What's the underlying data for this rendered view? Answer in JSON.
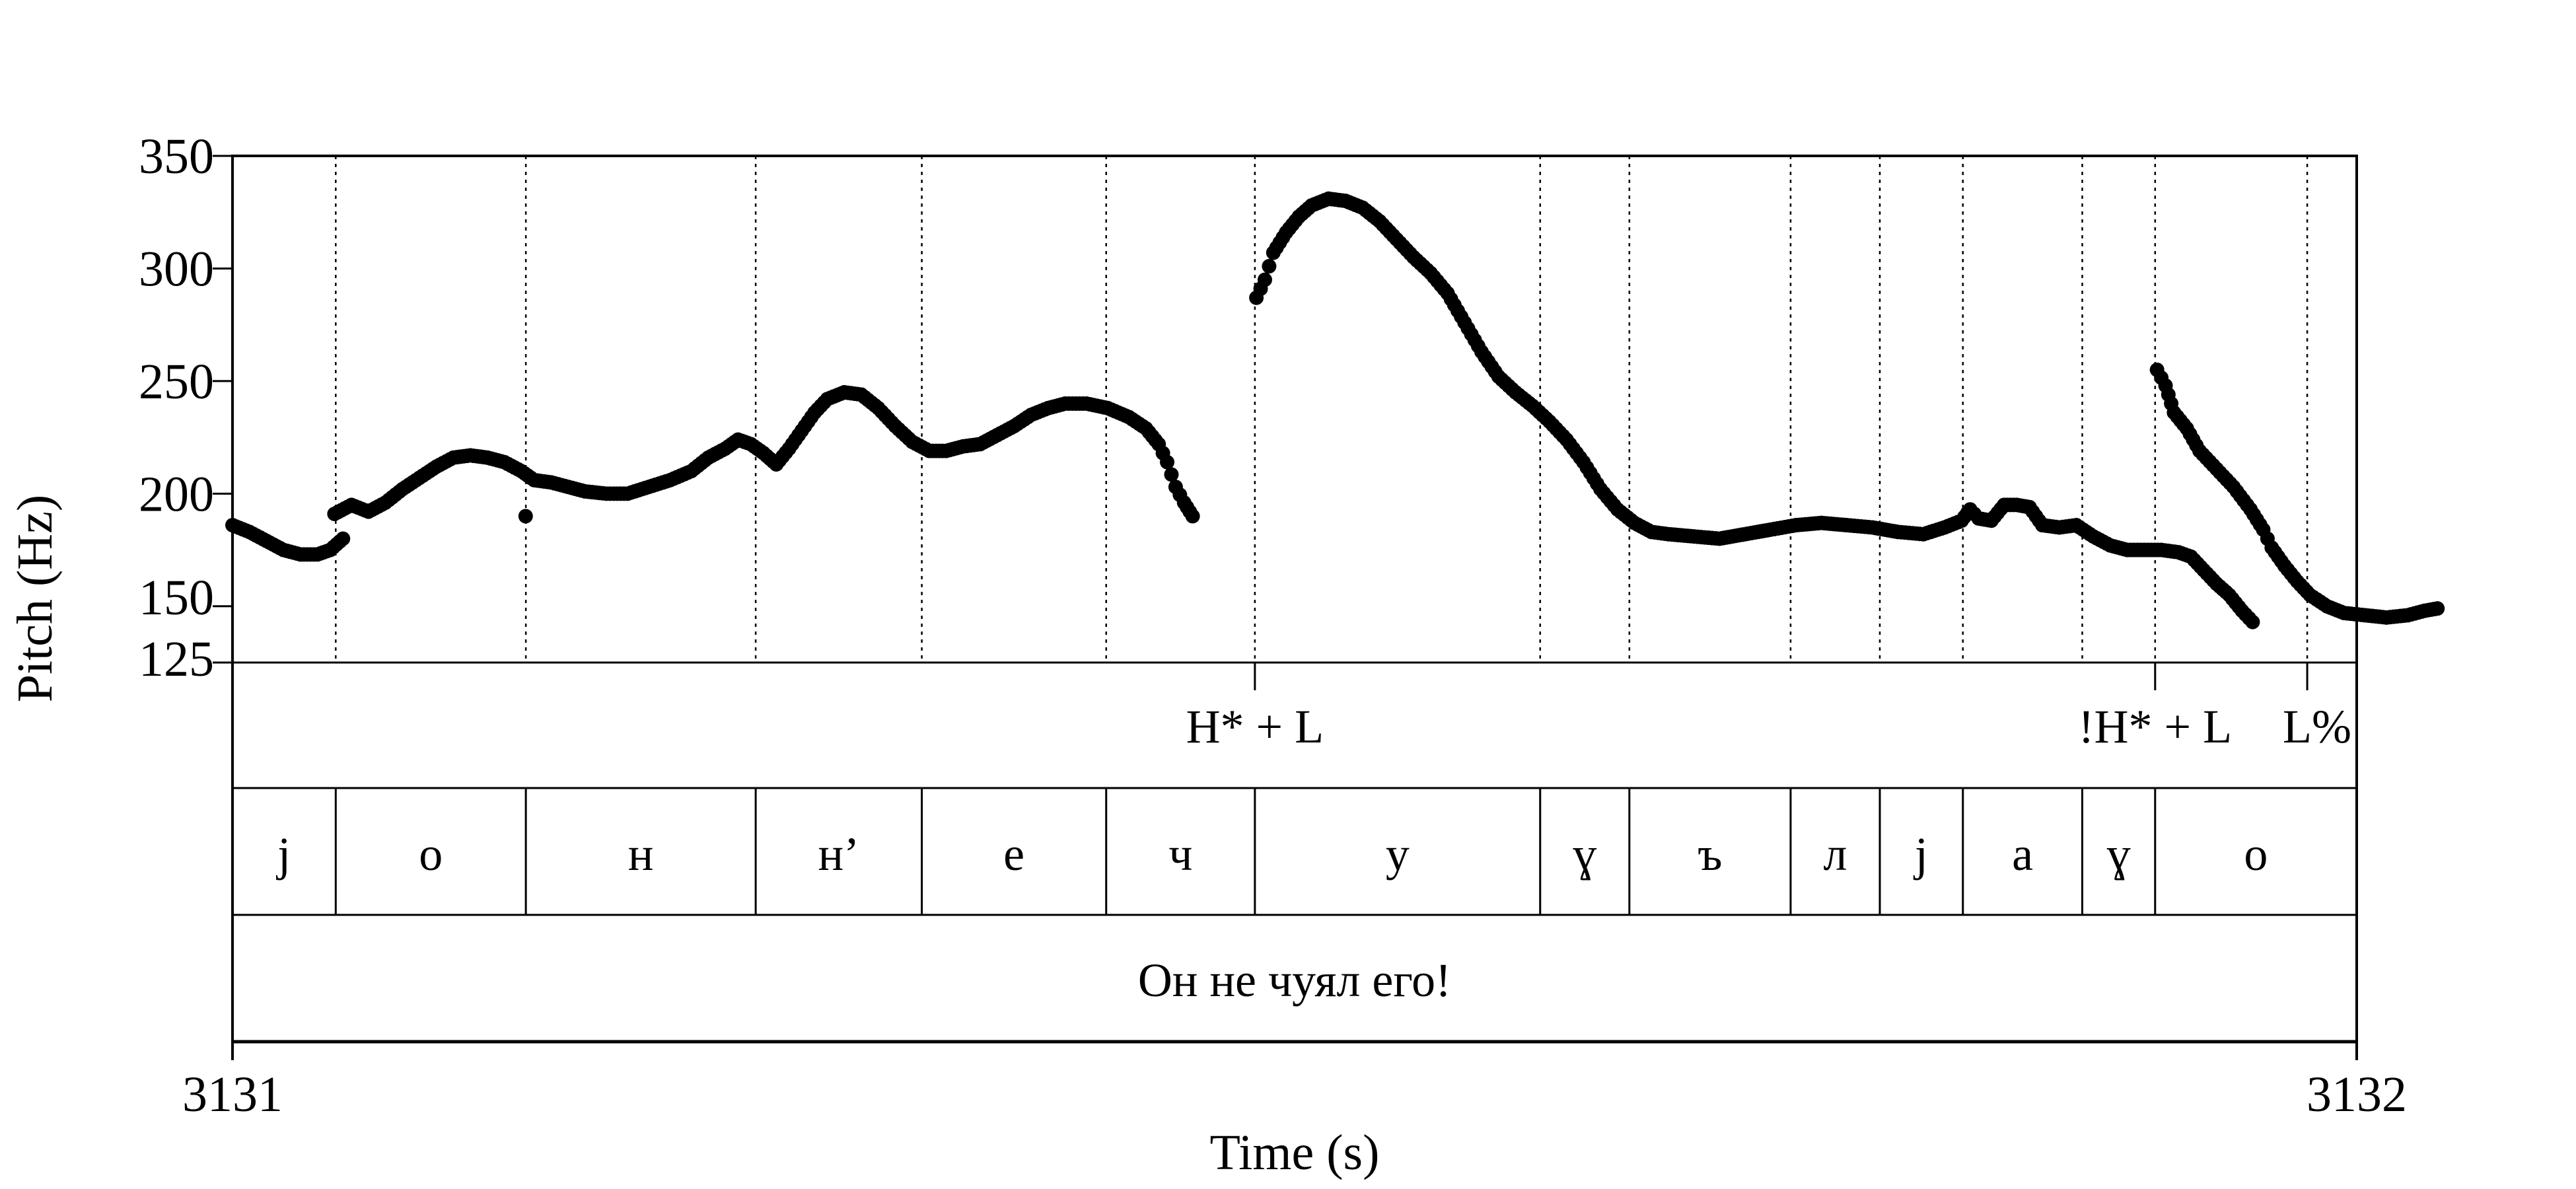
{
  "chart_data": {
    "type": "scatter",
    "title": "",
    "xlabel": "Time (s)",
    "ylabel": "Pitch (Hz)",
    "xlim": [
      3131,
      3132
    ],
    "ylim": [
      125,
      350
    ],
    "x_ticks": [
      "3131",
      "3132"
    ],
    "y_ticks": [
      {
        "value": 350,
        "label": "350"
      },
      {
        "value": 300,
        "label": "300"
      },
      {
        "value": 250,
        "label": "250"
      },
      {
        "value": 200,
        "label": "200"
      },
      {
        "value": 150,
        "label": "150"
      },
      {
        "value": 125,
        "label": "125"
      }
    ],
    "segment_boundaries": [
      3131.0486,
      3131.1381,
      3131.2463,
      3131.3245,
      3131.4113,
      3131.4813,
      3131.6156,
      3131.6576,
      3131.7335,
      3131.7755,
      3131.8146,
      3131.8708,
      3131.9051,
      3131.9767
    ],
    "pitch_curve": [
      [
        [
          3131.0,
          186
        ],
        [
          3131.008,
          183
        ],
        [
          3131.016,
          179
        ],
        [
          3131.024,
          175
        ],
        [
          3131.032,
          173
        ],
        [
          3131.04,
          173
        ],
        [
          3131.046,
          175
        ],
        [
          3131.052,
          180
        ]
      ],
      [
        [
          3131.048,
          191
        ],
        [
          3131.056,
          195
        ],
        [
          3131.064,
          192
        ],
        [
          3131.072,
          196
        ],
        [
          3131.08,
          202
        ],
        [
          3131.088,
          207
        ],
        [
          3131.096,
          212
        ],
        [
          3131.104,
          216
        ],
        [
          3131.112,
          217
        ],
        [
          3131.12,
          216
        ],
        [
          3131.128,
          214
        ],
        [
          3131.136,
          210
        ],
        [
          3131.142,
          206
        ],
        [
          3131.15,
          205
        ],
        [
          3131.158,
          203
        ],
        [
          3131.166,
          201
        ],
        [
          3131.176,
          200
        ],
        [
          3131.186,
          200
        ],
        [
          3131.196,
          203
        ],
        [
          3131.206,
          206
        ],
        [
          3131.216,
          210
        ],
        [
          3131.224,
          216
        ],
        [
          3131.232,
          220
        ],
        [
          3131.238,
          224
        ],
        [
          3131.244,
          222
        ],
        [
          3131.25,
          218
        ],
        [
          3131.256,
          213
        ],
        [
          3131.262,
          220
        ],
        [
          3131.268,
          228
        ],
        [
          3131.274,
          236
        ],
        [
          3131.28,
          242
        ],
        [
          3131.288,
          245
        ],
        [
          3131.296,
          244
        ],
        [
          3131.304,
          238
        ],
        [
          3131.312,
          230
        ],
        [
          3131.32,
          223
        ],
        [
          3131.328,
          219
        ],
        [
          3131.336,
          219
        ],
        [
          3131.344,
          221
        ],
        [
          3131.352,
          222
        ],
        [
          3131.36,
          226
        ],
        [
          3131.368,
          230
        ],
        [
          3131.376,
          235
        ],
        [
          3131.384,
          238
        ],
        [
          3131.392,
          240
        ],
        [
          3131.402,
          240
        ],
        [
          3131.412,
          238
        ],
        [
          3131.422,
          234
        ],
        [
          3131.43,
          229
        ],
        [
          3131.436,
          222
        ],
        [
          3131.44,
          214
        ],
        [
          3131.444,
          203
        ],
        [
          3131.448,
          196
        ],
        [
          3131.452,
          190
        ]
      ],
      [
        [
          3131.138,
          190
        ]
      ],
      [
        [
          3131.482,
          287
        ],
        [
          3131.486,
          295
        ],
        [
          3131.49,
          307
        ],
        [
          3131.496,
          316
        ],
        [
          3131.502,
          323
        ],
        [
          3131.508,
          328
        ],
        [
          3131.516,
          331
        ],
        [
          3131.524,
          330
        ],
        [
          3131.532,
          327
        ],
        [
          3131.54,
          321
        ],
        [
          3131.548,
          313
        ],
        [
          3131.556,
          305
        ],
        [
          3131.564,
          298
        ],
        [
          3131.572,
          289
        ],
        [
          3131.58,
          276
        ],
        [
          3131.588,
          263
        ],
        [
          3131.596,
          252
        ],
        [
          3131.604,
          245
        ],
        [
          3131.612,
          239
        ],
        [
          3131.62,
          232
        ],
        [
          3131.628,
          224
        ],
        [
          3131.636,
          214
        ],
        [
          3131.644,
          202
        ],
        [
          3131.652,
          193
        ],
        [
          3131.66,
          187
        ],
        [
          3131.668,
          183
        ],
        [
          3131.676,
          182
        ],
        [
          3131.688,
          181
        ],
        [
          3131.7,
          180
        ],
        [
          3131.712,
          182
        ],
        [
          3131.724,
          184
        ],
        [
          3131.736,
          186
        ],
        [
          3131.748,
          187
        ],
        [
          3131.76,
          186
        ],
        [
          3131.772,
          185
        ],
        [
          3131.784,
          183
        ],
        [
          3131.796,
          182
        ],
        [
          3131.806,
          185
        ],
        [
          3131.814,
          188
        ],
        [
          3131.818,
          193
        ],
        [
          3131.822,
          189
        ],
        [
          3131.828,
          188
        ],
        [
          3131.834,
          195
        ],
        [
          3131.84,
          195
        ],
        [
          3131.846,
          194
        ],
        [
          3131.852,
          186
        ],
        [
          3131.86,
          185
        ],
        [
          3131.868,
          186
        ],
        [
          3131.876,
          181
        ],
        [
          3131.884,
          177
        ],
        [
          3131.892,
          175
        ],
        [
          3131.9,
          175
        ],
        [
          3131.908,
          175
        ],
        [
          3131.916,
          174
        ],
        [
          3131.922,
          172
        ],
        [
          3131.928,
          166
        ],
        [
          3131.934,
          160
        ],
        [
          3131.94,
          155
        ],
        [
          3131.946,
          148
        ],
        [
          3131.951,
          143
        ]
      ],
      [
        [
          3131.906,
          255
        ],
        [
          3131.91,
          248
        ],
        [
          3131.914,
          236
        ],
        [
          3131.92,
          229
        ],
        [
          3131.926,
          219
        ],
        [
          3131.934,
          211
        ],
        [
          3131.942,
          203
        ],
        [
          3131.95,
          193
        ],
        [
          3131.956,
          184
        ],
        [
          3131.96,
          176
        ],
        [
          3131.966,
          168
        ],
        [
          3131.972,
          161
        ],
        [
          3131.978,
          155
        ],
        [
          3131.986,
          150
        ],
        [
          3131.994,
          147
        ],
        [
          3132.004,
          146
        ],
        [
          3132.014,
          145
        ],
        [
          3132.024,
          146
        ],
        [
          3132.032,
          148
        ],
        [
          3132.038,
          149
        ]
      ]
    ],
    "tones": [
      {
        "time": 3131.4813,
        "label": "H* + L"
      },
      {
        "time": 3131.9051,
        "label": "!H* + L"
      },
      {
        "time": 3131.9767,
        "label": "L%"
      }
    ],
    "segments": [
      {
        "start": 3131.0,
        "end": 3131.0486,
        "label": "j"
      },
      {
        "start": 3131.0486,
        "end": 3131.1381,
        "label": "o"
      },
      {
        "start": 3131.1381,
        "end": 3131.2463,
        "label": "н"
      },
      {
        "start": 3131.2463,
        "end": 3131.3245,
        "label": "н’"
      },
      {
        "start": 3131.3245,
        "end": 3131.4113,
        "label": "е"
      },
      {
        "start": 3131.4113,
        "end": 3131.4813,
        "label": "ч"
      },
      {
        "start": 3131.4813,
        "end": 3131.6156,
        "label": "у"
      },
      {
        "start": 3131.6156,
        "end": 3131.6576,
        "label": "ɣ"
      },
      {
        "start": 3131.6576,
        "end": 3131.7335,
        "label": "ъ"
      },
      {
        "start": 3131.7335,
        "end": 3131.7755,
        "label": "л"
      },
      {
        "start": 3131.7755,
        "end": 3131.8146,
        "label": "j"
      },
      {
        "start": 3131.8146,
        "end": 3131.8708,
        "label": "a"
      },
      {
        "start": 3131.8708,
        "end": 3131.9051,
        "label": "ɣ"
      },
      {
        "start": 3131.9051,
        "end": 3132.0,
        "label": "o"
      }
    ],
    "sentence": "Он не чуял его!",
    "grid": false,
    "legend": "none"
  }
}
